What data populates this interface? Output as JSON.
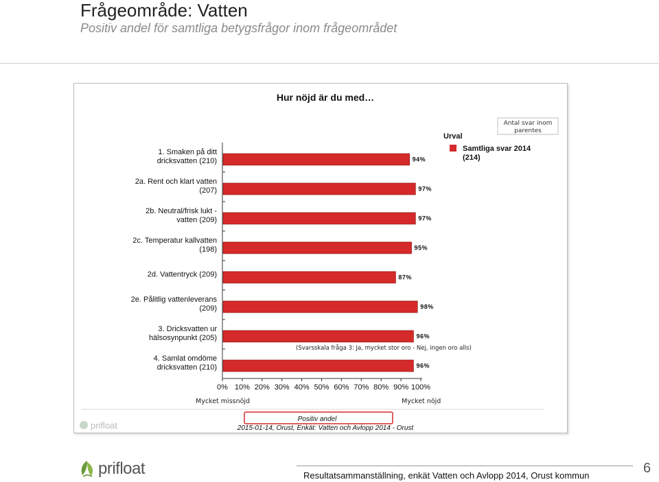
{
  "page": {
    "title": "Frågeområde: Vatten",
    "subtitle": "Positiv andel för samtliga betygsfrågor inom frågeområdet",
    "footer": "Resultatsammanställning, enkät Vatten och Avlopp 2014, Orust kommun",
    "page_number": "6",
    "logo_text": "prifloat"
  },
  "chart_data": {
    "type": "bar",
    "orientation": "horizontal",
    "title": "Hur nöjd är du med…",
    "categories": [
      [
        "1. Smaken på ditt",
        "dricksvatten (210)"
      ],
      [
        "2a. Rent och klart vatten",
        "(207)"
      ],
      [
        "2b. Neutral/frisk lukt -",
        "vatten (209)"
      ],
      [
        "2c. Temperatur kallvatten",
        "(198)"
      ],
      [
        "2d. Vattentryck (209)"
      ],
      [
        "2e. Pålitlig vattenleverans",
        "(209)"
      ],
      [
        "3. Dricksvatten ur",
        "hälsosynpunkt (205)"
      ],
      [
        "4. Samlat omdöme",
        "dricksvatten (210)"
      ]
    ],
    "series": [
      {
        "name": "Samtliga svar 2014 (214)",
        "color": "#d42a2a",
        "values": [
          94,
          97,
          97,
          95,
          87,
          98,
          96,
          96
        ],
        "labels": [
          "94%",
          "97%",
          "97%",
          "95%",
          "87%",
          "98%",
          "96%",
          "96%"
        ]
      }
    ],
    "xlim": [
      0,
      100
    ],
    "xticks": [
      "0%",
      "10%",
      "20%",
      "30%",
      "40%",
      "50%",
      "60%",
      "70%",
      "80%",
      "90%",
      "100%"
    ],
    "xlabel": "Positiv andel",
    "x_left_label": "Mycket missnöjd",
    "x_right_label": "Mycket nöjd",
    "legend_title": "Urval",
    "legend_label_lines": [
      "Samtliga svar 2014",
      "(214)"
    ],
    "note_box": [
      "Antal svar inom",
      "parentes"
    ],
    "scale_note": "(Svarsskala fråga 3: Ja, mycket stor oro - Nej, ingen oro alls)",
    "source": "2015-01-14, Orust, Enkät: Vatten och Avlopp 2014 - Orust",
    "watermark": "prifloat",
    "legend_position": "top-right"
  }
}
